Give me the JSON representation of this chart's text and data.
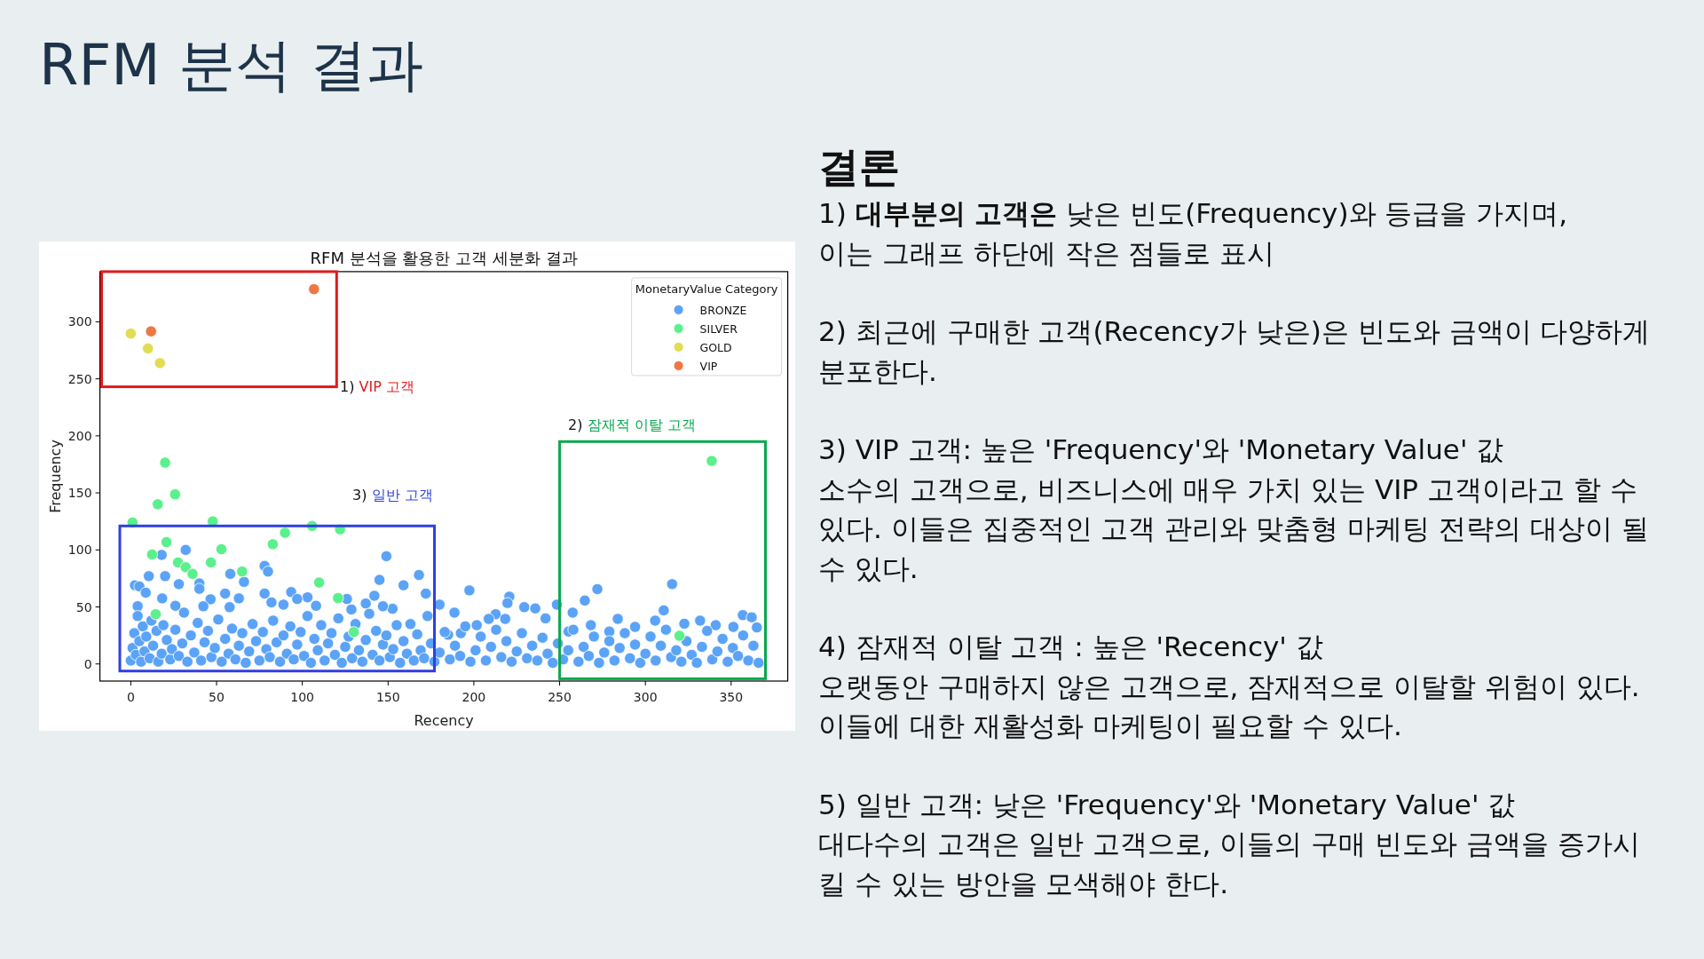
{
  "chart_data": {
    "type": "scatter",
    "title": "RFM 분석을 활용한 고객 세분화 결과",
    "xlabel": "Recency",
    "ylabel": "Frequency",
    "legend_title": "MonetaryValue Category",
    "legend": "top right",
    "marker": "circle",
    "xlim": [
      -18,
      383
    ],
    "ylim": [
      -15,
      344
    ],
    "xticks": [
      0,
      50,
      100,
      150,
      200,
      250,
      300,
      350
    ],
    "yticks": [
      0,
      50,
      100,
      150,
      200,
      250,
      300
    ],
    "series": [
      {
        "name": "BRONZE",
        "color": "#5ba3f7",
        "x": [
          32,
          18,
          149,
          78,
          58,
          80,
          20,
          10.5,
          28,
          66,
          145,
          168,
          159,
          2.4,
          5,
          40,
          55,
          93.5,
          78,
          172,
          103,
          142,
          63,
          46.5,
          82,
          97,
          126,
          128.6,
          137,
          152.6,
          147,
          108,
          89,
          26,
          4,
          57.6,
          42.3,
          18.3,
          8.7,
          40,
          197.4,
          220.7,
          219.6,
          229.4,
          235.8,
          248.4,
          241.8,
          264.7,
          272,
          315.6,
          310.7,
          257.6,
          305.7,
          283.9,
          356.8,
          362,
          331.9,
          341,
          188.7,
          180,
          212.7,
          208.7,
          218.3,
          201.7,
          185,
          192.4,
          294,
          322.7,
          351.3,
          268.2,
          255.2,
          279,
          0,
          1,
          2,
          3,
          4,
          5,
          6,
          7,
          8,
          9,
          11,
          12,
          13,
          15,
          16,
          18,
          19,
          21,
          23,
          24,
          26,
          28,
          30,
          31,
          33,
          35,
          37,
          39,
          41,
          43,
          45,
          47,
          49,
          51,
          53,
          55,
          57,
          59,
          61,
          63,
          65,
          67,
          69,
          71,
          73,
          75,
          77,
          79,
          81,
          83,
          85,
          87,
          89,
          91,
          93,
          95,
          97,
          99,
          101,
          103,
          105,
          107,
          109,
          111,
          113,
          115,
          117,
          119,
          121,
          123,
          125,
          127,
          129,
          131,
          133,
          135,
          137,
          139,
          141,
          143,
          145,
          147,
          149,
          151,
          153,
          155,
          157,
          159,
          161,
          163,
          165,
          167,
          169,
          171,
          173,
          175,
          177,
          180,
          183,
          186,
          189,
          192,
          195,
          198,
          201,
          204,
          207,
          210,
          213,
          216,
          219,
          222,
          225,
          228,
          231,
          234,
          237,
          240,
          243,
          246,
          249,
          252,
          255,
          258,
          261,
          264,
          267,
          270,
          273,
          276,
          279,
          282,
          285,
          288,
          291,
          294,
          297,
          300,
          303,
          306,
          309,
          312,
          315,
          318,
          321,
          324,
          327,
          330,
          333,
          336,
          339,
          342,
          345,
          348,
          351,
          354,
          357,
          360,
          363,
          366,
          365
        ],
        "values": [
          100,
          95.6,
          94.5,
          86,
          79,
          81,
          77,
          77,
          70,
          72,
          73.7,
          78,
          69,
          69,
          68,
          70.6,
          61.7,
          63,
          61.7,
          61.7,
          58.4,
          59.8,
          57.5,
          56.7,
          54,
          57,
          57,
          47.8,
          53,
          48.4,
          50.6,
          51,
          52,
          51,
          50.6,
          49.8,
          50.6,
          57.5,
          62.5,
          65.9,
          64.5,
          59,
          53.4,
          49.8,
          48.7,
          52,
          40,
          55.6,
          65.6,
          70,
          47,
          45,
          38,
          39.5,
          42.8,
          40.9,
          38,
          34,
          45,
          52,
          43.6,
          39.5,
          39.5,
          34,
          25.6,
          27,
          32.5,
          35.3,
          32.5,
          34,
          28.4,
          28.4,
          3,
          14,
          27,
          8,
          42,
          20,
          2,
          33,
          11,
          24,
          5,
          38,
          16,
          29,
          2,
          9,
          34,
          21,
          4,
          13,
          30,
          7,
          18,
          45,
          2,
          25,
          10,
          36,
          3,
          19,
          29,
          6,
          14,
          39,
          2,
          22,
          9,
          31,
          4,
          16,
          27,
          1,
          11,
          35,
          20,
          3,
          28,
          13,
          6,
          38,
          19,
          2,
          25,
          9,
          33,
          4,
          17,
          28,
          7,
          42,
          1,
          22,
          12,
          34,
          3,
          18,
          27,
          8,
          40,
          1,
          15,
          24,
          5,
          35,
          12,
          2,
          21,
          44,
          8,
          29,
          3,
          17,
          25,
          6,
          13,
          34,
          1,
          20,
          9,
          35,
          3,
          26,
          12,
          5,
          42,
          18,
          2,
          10,
          28,
          4,
          16,
          7,
          33,
          2,
          12,
          24,
          3,
          15,
          30,
          6,
          20,
          2,
          11,
          27,
          5,
          16,
          3,
          23,
          9,
          1,
          18,
          4,
          12,
          30,
          2,
          15,
          7,
          24,
          1,
          10,
          20,
          3,
          14,
          27,
          5,
          17,
          1,
          9,
          24,
          3,
          16,
          30,
          6,
          12,
          2,
          20,
          8,
          1,
          15,
          29,
          4,
          11,
          22,
          2,
          14,
          7,
          25,
          3,
          16,
          1,
          32
        ]
      },
      {
        "name": "SILVER",
        "color": "#5cf08c",
        "x": [
          1,
          20,
          15.7,
          25.8,
          47.8,
          105.7,
          122,
          89.9,
          82.8,
          52.8,
          20.8,
          12.4,
          27.5,
          32,
          36,
          46.7,
          64.9,
          109.8,
          120.8,
          14.5,
          130,
          338.7,
          319.9
        ],
        "values": [
          124,
          176.5,
          140,
          148.7,
          125,
          121,
          118,
          115,
          105,
          100.6,
          106.8,
          96,
          89,
          84.8,
          79,
          89,
          81,
          71.4,
          57.8,
          43.6,
          28,
          178,
          24.7
        ]
      },
      {
        "name": "GOLD",
        "color": "#e2dc55",
        "x": [
          0,
          10,
          17
        ],
        "values": [
          289.7,
          276.6,
          263.8
        ]
      },
      {
        "name": "VIP",
        "color": "#ee7844",
        "x": [
          106.8,
          11.8
        ],
        "values": [
          328.6,
          291.6
        ]
      }
    ],
    "annotations": [
      "RFM 분석 결과",
      "결론",
      "1) **대부분의 고객은** 낮은 빈도(Frequency)와 등급을 가지며,\n이는 그래프 하단에 작은 점들로 표시",
      "2) 최근에 구매한 고객(Recency가 낮은)은 빈도와 금액이 다양하게 분포한다.",
      "3) VIP 고객: 높은 'Frequency'와 'Monetary Value' 값\n소수의 고객으로, 비즈니스에 매우 가치 있는 VIP 고객이라고 할 수 있다. 이들은 집중적인 고객 관리와 맞춤형 마케팅 전략의 대상이 될 수 있다.",
      "4) 잠재적 이탈 고객 : 높은 'Recency' 값\n오랫동안 구매하지 않은 고객으로, 잠재적으로 이탈할 위험이 있다. 이들에 대한 재활성화 마케팅이 필요할 수 있다.",
      "5) 일반 고객: 낮은 'Frequency'와 'Monetary Value' 값\n대다수의 고객은 일반 고객으로, 이들의 구매 빈도와 금액을 증가시킬 수 있는 방안을 모색해야 한다.",
      "1) VIP 고객",
      "2) 잠재적 이탈 고객",
      "3) 일반 고객"
    ]
  }
}
